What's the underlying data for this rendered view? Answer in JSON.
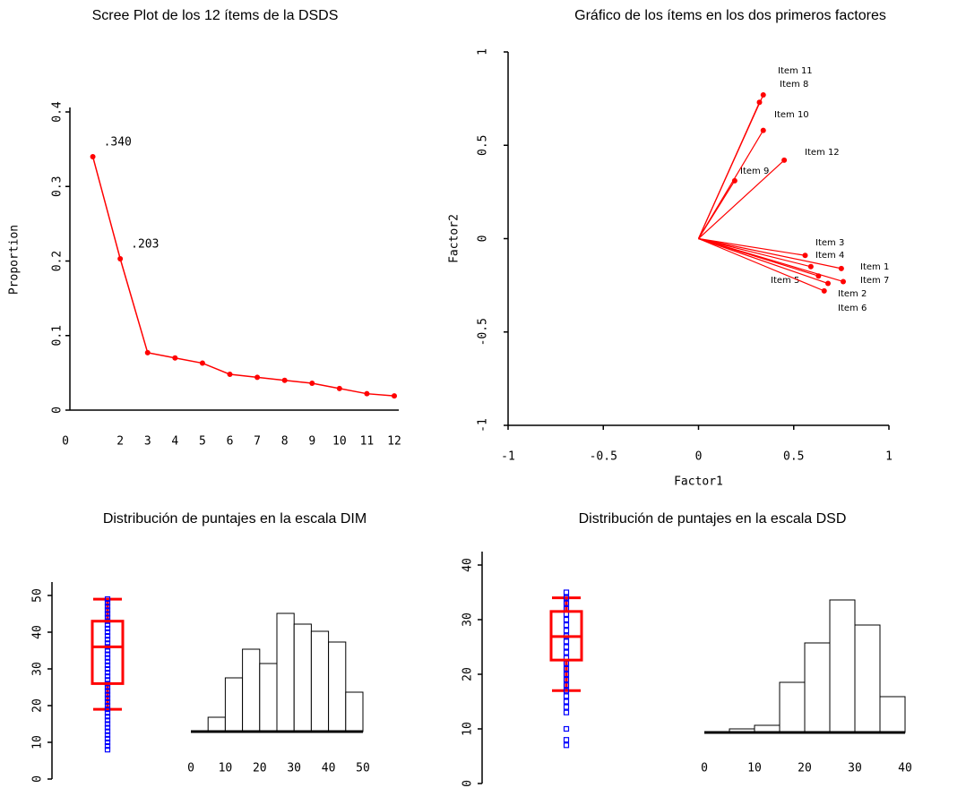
{
  "chart_data": [
    {
      "type": "line",
      "title": "Scree Plot de los 12 ítems de la DSDS",
      "y_label": "Proportion",
      "color": "#ff0000",
      "x": [
        1,
        2,
        3,
        4,
        5,
        6,
        7,
        8,
        9,
        10,
        11,
        12
      ],
      "values": [
        0.34,
        0.203,
        0.077,
        0.07,
        0.063,
        0.048,
        0.044,
        0.04,
        0.036,
        0.029,
        0.022,
        0.019
      ],
      "value_labels": [
        ".340",
        ".203",
        null,
        null,
        null,
        null,
        null,
        null,
        null,
        null,
        null,
        null
      ],
      "xlim": [
        0,
        12
      ],
      "xticks": [
        0,
        2,
        3,
        4,
        5,
        6,
        7,
        8,
        9,
        10,
        11,
        12
      ],
      "ylim": [
        0,
        0.4
      ],
      "yticks": [
        0,
        0.1,
        0.2,
        0.3,
        0.4
      ]
    },
    {
      "type": "scatter",
      "title": "Gráfico de los ítems en los dos primeros factores",
      "x_label": "Factor1",
      "y_label": "Factor2",
      "color": "#ff0000",
      "points": [
        {
          "label": "Item 1",
          "x": 0.75,
          "y": -0.16
        },
        {
          "label": "Item 2",
          "x": 0.68,
          "y": -0.24
        },
        {
          "label": "Item 3",
          "x": 0.56,
          "y": -0.09
        },
        {
          "label": "Item 4",
          "x": 0.59,
          "y": -0.15
        },
        {
          "label": "Item 5",
          "x": 0.63,
          "y": -0.2
        },
        {
          "label": "Item 6",
          "x": 0.66,
          "y": -0.28
        },
        {
          "label": "Item 7",
          "x": 0.76,
          "y": -0.23
        },
        {
          "label": "Item 8",
          "x": 0.32,
          "y": 0.73
        },
        {
          "label": "Item 9",
          "x": 0.19,
          "y": 0.31
        },
        {
          "label": "Item 10",
          "x": 0.34,
          "y": 0.58
        },
        {
          "label": "Item 11",
          "x": 0.34,
          "y": 0.77
        },
        {
          "label": "Item 12",
          "x": 0.45,
          "y": 0.42
        }
      ],
      "xlim": [
        -1,
        1
      ],
      "xticks": [
        -1,
        -0.5,
        0,
        0.5,
        1
      ],
      "ylim": [
        -1,
        1
      ],
      "yticks": [
        -1,
        -0.5,
        0,
        0.5,
        1
      ]
    },
    {
      "type": "boxhist",
      "title": "Distribución de puntajes en la escala DIM",
      "box_color": "#ff0000",
      "point_color": "#0000ff",
      "box": {
        "whisker_low": 19,
        "q1": 26,
        "median": 36,
        "q3": 43,
        "whisker_high": 49,
        "points": [
          8,
          9,
          10,
          11,
          12,
          13,
          14,
          15,
          16,
          17,
          18,
          19,
          20,
          21,
          22,
          23,
          24,
          25,
          26,
          27,
          28,
          29,
          30,
          31,
          32,
          33,
          34,
          35,
          36,
          37,
          38,
          39,
          40,
          41,
          42,
          43,
          44,
          45,
          46,
          47,
          48,
          49
        ]
      },
      "ylim": [
        0,
        50
      ],
      "yticks": [
        0,
        10,
        20,
        30,
        40,
        50
      ],
      "bins": [
        0,
        5,
        10,
        15,
        20,
        25,
        30,
        35,
        40,
        45,
        50
      ],
      "counts": [
        0,
        4,
        15,
        23,
        19,
        33,
        30,
        28,
        25,
        11
      ],
      "xticks": [
        0,
        10,
        20,
        30,
        40,
        50
      ]
    },
    {
      "type": "boxhist",
      "title": "Distribución de puntajes en la escala DSD",
      "box_color": "#ff0000",
      "point_color": "#0000ff",
      "box": {
        "whisker_low": 17,
        "q1": 22.6,
        "median": 26.9,
        "q3": 31.5,
        "whisker_high": 34,
        "points": [
          7,
          8,
          10,
          13,
          14,
          15,
          16,
          17,
          18,
          19,
          20,
          21,
          22,
          23,
          24,
          25,
          26,
          27,
          28,
          29,
          30,
          31,
          32,
          33,
          34,
          35
        ]
      },
      "ylim": [
        0,
        40
      ],
      "yticks": [
        0,
        10,
        20,
        30,
        40
      ],
      "bins": [
        0,
        5,
        10,
        15,
        20,
        25,
        30,
        35,
        40
      ],
      "counts": [
        0,
        1,
        2,
        14,
        25,
        37,
        30,
        10
      ],
      "xticks": [
        0,
        10,
        20,
        30,
        40
      ]
    }
  ]
}
